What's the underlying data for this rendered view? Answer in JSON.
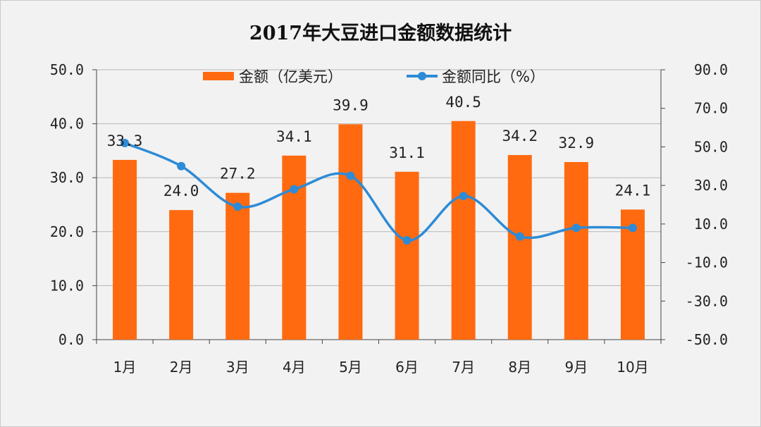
{
  "chart_data": {
    "type": "bar+line",
    "title": "2017年大豆进口金额数据统计",
    "categories": [
      "1月",
      "2月",
      "3月",
      "4月",
      "5月",
      "6月",
      "7月",
      "8月",
      "9月",
      "10月"
    ],
    "series": [
      {
        "name": "金额（亿美元）",
        "type": "bar",
        "axis": "left",
        "values": [
          33.3,
          24.0,
          27.2,
          34.1,
          39.9,
          31.1,
          40.5,
          34.2,
          32.9,
          24.1
        ],
        "labels": [
          "33.3",
          "24.0",
          "27.2",
          "34.1",
          "39.9",
          "31.1",
          "40.5",
          "34.2",
          "32.9",
          "24.1"
        ]
      },
      {
        "name": "金额同比（%）",
        "type": "line",
        "axis": "right",
        "smooth": true,
        "values": [
          52.0,
          40.0,
          19.0,
          28.0,
          35.0,
          1.5,
          24.5,
          3.5,
          8.0,
          8.0
        ]
      }
    ],
    "y_left": {
      "min": 0,
      "max": 50,
      "step": 10,
      "tick_labels": [
        "0.0",
        "10.0",
        "20.0",
        "30.0",
        "40.0",
        "50.0"
      ]
    },
    "y_right": {
      "min": -50,
      "max": 90,
      "step": 20,
      "tick_labels": [
        "-50.0",
        "-30.0",
        "-10.0",
        "10.0",
        "30.0",
        "50.0",
        "70.0",
        "90.0"
      ]
    },
    "grid": true,
    "legend_position": "top-center",
    "colors": {
      "bar": "#ff6a10",
      "line": "#2e8bd6",
      "grid": "#b7b7b7",
      "axis": "#444444"
    }
  }
}
